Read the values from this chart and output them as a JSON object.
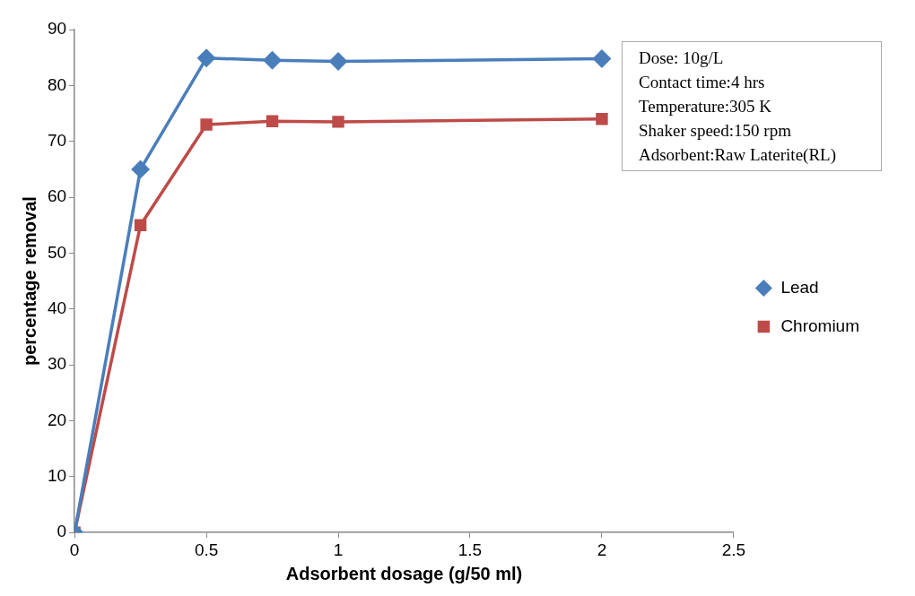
{
  "chart_data": {
    "type": "line",
    "xlabel": "Adsorbent dosage (g/50 ml)",
    "ylabel": "percentage removal",
    "x": [
      0,
      0.25,
      0.5,
      0.75,
      1,
      2
    ],
    "series": [
      {
        "name": "Lead",
        "color": "#4a7ebb",
        "marker": "diamond",
        "values": [
          0,
          65,
          84.9,
          84.5,
          84.3,
          84.8
        ]
      },
      {
        "name": "Chromium",
        "color": "#be4b48",
        "marker": "square",
        "values": [
          0,
          55,
          73,
          73.6,
          73.5,
          74
        ]
      }
    ],
    "xlim": [
      0,
      2.5
    ],
    "xticks": [
      0,
      0.5,
      1,
      1.5,
      2,
      2.5
    ],
    "ylim": [
      0,
      90
    ],
    "yticks": [
      0,
      10,
      20,
      30,
      40,
      50,
      60,
      70,
      80,
      90
    ],
    "grid": false,
    "legend": "right",
    "line_style": "solid",
    "annotations": [
      "Dose: 10g/L",
      "Contact time:4 hrs",
      "Temperature:305 K",
      "Shaker speed:150 rpm",
      "Adsorbent:Raw Laterite(RL)"
    ]
  }
}
